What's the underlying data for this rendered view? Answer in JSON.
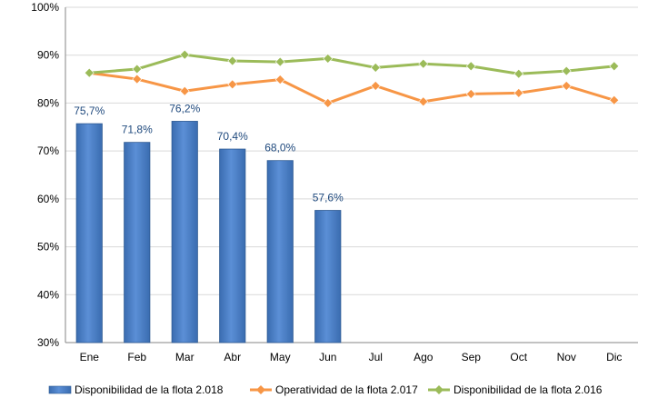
{
  "chart_data": {
    "type": "bar",
    "categories": [
      "Ene",
      "Feb",
      "Mar",
      "Abr",
      "May",
      "Jun",
      "Jul",
      "Ago",
      "Sep",
      "Oct",
      "Nov",
      "Dic"
    ],
    "ylim": [
      30,
      100
    ],
    "yticks": [
      "30%",
      "40%",
      "50%",
      "60%",
      "70%",
      "80%",
      "90%",
      "100%"
    ],
    "grid": "horizontal",
    "legend_position": "bottom",
    "series": [
      {
        "name": "Disponibilidad de la flota 2.018",
        "type": "bar",
        "color": "#4F81BD",
        "values": [
          75.7,
          71.8,
          76.2,
          70.4,
          68.0,
          57.6,
          null,
          null,
          null,
          null,
          null,
          null
        ],
        "labels": [
          "75,7%",
          "71,8%",
          "76,2%",
          "70,4%",
          "68,0%",
          "57,6%"
        ]
      },
      {
        "name": "Operatividad de la flota 2.017",
        "type": "line",
        "color": "#F79646",
        "values": [
          86.3,
          85.0,
          82.5,
          83.9,
          84.9,
          80.0,
          83.6,
          80.3,
          81.9,
          82.1,
          83.6,
          80.6
        ]
      },
      {
        "name": "Disponibilidad de la flota 2.016",
        "type": "line",
        "color": "#9BBB59",
        "values": [
          86.3,
          87.1,
          90.1,
          88.8,
          88.6,
          89.3,
          87.4,
          88.2,
          87.7,
          86.1,
          86.7,
          87.7
        ]
      }
    ]
  }
}
